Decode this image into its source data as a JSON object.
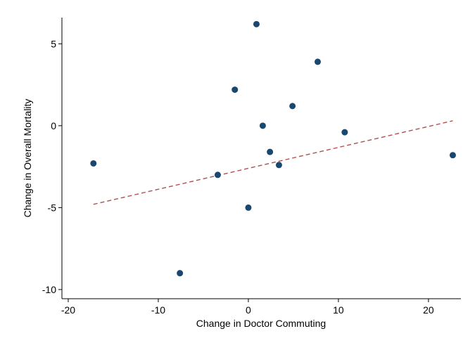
{
  "chart_data": {
    "type": "scatter",
    "x_label": "Change in Doctor Commuting",
    "y_label": "Change in Overall Mortality",
    "x": [
      -17.2,
      -7.6,
      -3.4,
      -1.5,
      0.0,
      0.9,
      1.6,
      2.4,
      3.4,
      4.9,
      7.7,
      10.7,
      22.7
    ],
    "values": [
      -2.3,
      -9.0,
      -3.0,
      2.2,
      -5.0,
      6.2,
      0.0,
      -1.6,
      -2.4,
      1.2,
      3.9,
      -0.4,
      -1.8
    ],
    "color": "#1a476f",
    "trend": {
      "x": [
        -17.2,
        22.7
      ],
      "y": [
        -4.8,
        0.3
      ],
      "color": "#b05050",
      "dashed": true
    },
    "xlim": [
      -20.7,
      23.6
    ],
    "ylim": [
      -10.56,
      6.6
    ],
    "xticks": [
      -20,
      -10,
      0,
      10,
      20
    ],
    "yticks": [
      -10,
      -5,
      0,
      5
    ],
    "grid": false
  }
}
